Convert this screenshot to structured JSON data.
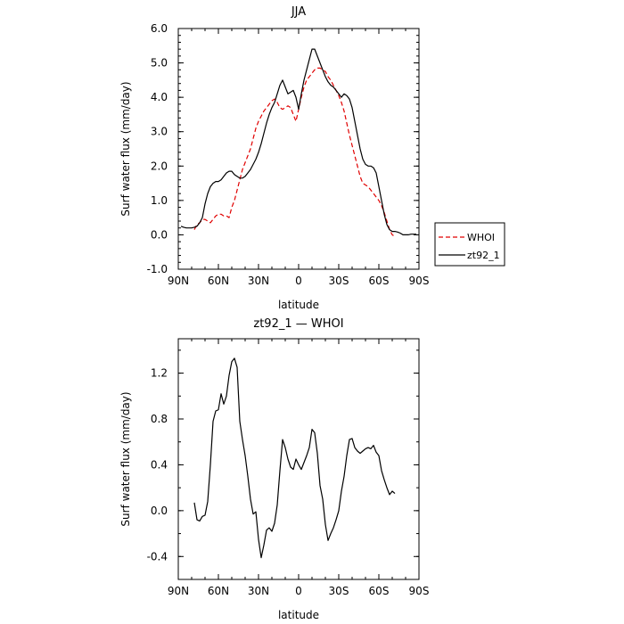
{
  "chart_data": [
    {
      "type": "line",
      "title": "JJA",
      "xlabel": "latitude",
      "ylabel": "Surf water flux (mm/day)",
      "x_tick_labels": [
        "90N",
        "60N",
        "30N",
        "0",
        "30S",
        "60S",
        "90S"
      ],
      "y_tick_labels": [
        "-1.0",
        "0.0",
        "1.0",
        "2.0",
        "3.0",
        "4.0",
        "5.0",
        "6.0"
      ],
      "xlim": [
        90,
        -90
      ],
      "ylim": [
        -1,
        6
      ],
      "y_ticks": [
        -1,
        0,
        1,
        2,
        3,
        4,
        5,
        6
      ],
      "legend": {
        "position": "right",
        "entries": [
          "WHOI",
          "zt92_1"
        ]
      },
      "series": [
        {
          "name": "WHOI",
          "color": "#e00000",
          "dash": "dashed",
          "x": [
            78,
            76,
            74,
            72,
            70,
            68,
            66,
            64,
            62,
            60,
            58,
            56,
            54,
            52,
            50,
            48,
            46,
            44,
            42,
            40,
            38,
            36,
            34,
            32,
            30,
            28,
            26,
            24,
            22,
            20,
            18,
            16,
            14,
            12,
            10,
            8,
            6,
            4,
            2,
            0,
            -2,
            -4,
            -6,
            -8,
            -10,
            -12,
            -14,
            -16,
            -18,
            -20,
            -22,
            -24,
            -26,
            -28,
            -30,
            -32,
            -34,
            -36,
            -38,
            -40,
            -42,
            -44,
            -46,
            -48,
            -50,
            -52,
            -54,
            -56,
            -58,
            -60,
            -62,
            -64,
            -66,
            -68,
            -70,
            -72
          ],
          "y": [
            0.15,
            0.3,
            0.35,
            0.45,
            0.45,
            0.4,
            0.35,
            0.45,
            0.55,
            0.6,
            0.6,
            0.55,
            0.55,
            0.5,
            0.8,
            1.0,
            1.3,
            1.6,
            1.9,
            2.1,
            2.3,
            2.5,
            2.8,
            3.1,
            3.3,
            3.45,
            3.6,
            3.7,
            3.8,
            3.9,
            3.95,
            3.85,
            3.7,
            3.65,
            3.7,
            3.75,
            3.7,
            3.5,
            3.3,
            3.65,
            4.0,
            4.3,
            4.5,
            4.6,
            4.7,
            4.8,
            4.85,
            4.85,
            4.8,
            4.75,
            4.6,
            4.5,
            4.35,
            4.2,
            4.05,
            3.85,
            3.6,
            3.25,
            2.9,
            2.6,
            2.3,
            2.0,
            1.7,
            1.5,
            1.45,
            1.4,
            1.3,
            1.2,
            1.1,
            1.0,
            0.85,
            0.65,
            0.4,
            0.15,
            0.0,
            -0.05
          ]
        },
        {
          "name": "zt92_1",
          "color": "#000000",
          "dash": "solid",
          "x": [
            88,
            86,
            84,
            82,
            80,
            78,
            76,
            74,
            72,
            70,
            68,
            66,
            64,
            62,
            60,
            58,
            56,
            54,
            52,
            50,
            48,
            46,
            44,
            42,
            40,
            38,
            36,
            34,
            32,
            30,
            28,
            26,
            24,
            22,
            20,
            18,
            16,
            14,
            12,
            10,
            8,
            6,
            4,
            2,
            0,
            -2,
            -4,
            -6,
            -8,
            -10,
            -12,
            -14,
            -16,
            -18,
            -20,
            -22,
            -24,
            -26,
            -28,
            -30,
            -32,
            -34,
            -36,
            -38,
            -40,
            -42,
            -44,
            -46,
            -48,
            -50,
            -52,
            -54,
            -56,
            -58,
            -60,
            -62,
            -64,
            -66,
            -68,
            -70,
            -72,
            -74,
            -76,
            -78,
            -80,
            -82,
            -84,
            -86,
            -88
          ],
          "y": [
            0.25,
            0.22,
            0.2,
            0.2,
            0.2,
            0.22,
            0.25,
            0.35,
            0.5,
            0.9,
            1.2,
            1.4,
            1.5,
            1.55,
            1.55,
            1.6,
            1.7,
            1.8,
            1.85,
            1.85,
            1.75,
            1.7,
            1.65,
            1.65,
            1.7,
            1.8,
            1.9,
            2.05,
            2.2,
            2.4,
            2.65,
            2.95,
            3.25,
            3.5,
            3.7,
            3.85,
            4.1,
            4.35,
            4.5,
            4.3,
            4.1,
            4.15,
            4.2,
            4.0,
            3.65,
            4.1,
            4.5,
            4.8,
            5.1,
            5.4,
            5.4,
            5.2,
            5.0,
            4.8,
            4.6,
            4.45,
            4.35,
            4.3,
            4.2,
            4.1,
            4.0,
            4.1,
            4.05,
            3.95,
            3.7,
            3.3,
            2.9,
            2.5,
            2.2,
            2.05,
            2.0,
            2.0,
            1.95,
            1.8,
            1.4,
            1.0,
            0.6,
            0.3,
            0.15,
            0.1,
            0.1,
            0.08,
            0.05,
            0.0,
            0.0,
            0.0,
            0.02,
            0.02,
            0.02
          ]
        }
      ]
    },
    {
      "type": "line",
      "title": "zt92_1  —  WHOI",
      "xlabel": "latitude",
      "ylabel": "Surf water flux (mm/day)",
      "x_tick_labels": [
        "90N",
        "60N",
        "30N",
        "0",
        "30S",
        "60S",
        "90S"
      ],
      "y_tick_labels": [
        "-0.4",
        "0.0",
        "0.4",
        "0.8",
        "1.2"
      ],
      "xlim": [
        90,
        -90
      ],
      "ylim": [
        -0.6,
        1.5
      ],
      "y_ticks": [
        -0.4,
        0.0,
        0.4,
        0.8,
        1.2
      ],
      "series": [
        {
          "name": "",
          "color": "#000000",
          "dash": "solid",
          "x": [
            78,
            76,
            74,
            72,
            70,
            68,
            66,
            64,
            62,
            60,
            58,
            56,
            54,
            52,
            50,
            48,
            46,
            44,
            42,
            40,
            38,
            36,
            34,
            32,
            30,
            28,
            26,
            24,
            22,
            20,
            18,
            16,
            14,
            12,
            10,
            8,
            6,
            4,
            2,
            0,
            -2,
            -4,
            -6,
            -8,
            -10,
            -12,
            -14,
            -16,
            -18,
            -20,
            -22,
            -24,
            -26,
            -28,
            -30,
            -32,
            -34,
            -36,
            -38,
            -40,
            -42,
            -44,
            -46,
            -48,
            -50,
            -52,
            -54,
            -56,
            -58,
            -60,
            -62,
            -64,
            -66,
            -68,
            -70,
            -72
          ],
          "y": [
            0.07,
            -0.08,
            -0.09,
            -0.05,
            -0.04,
            0.08,
            0.4,
            0.78,
            0.87,
            0.88,
            1.02,
            0.93,
            1.0,
            1.18,
            1.3,
            1.33,
            1.25,
            0.78,
            0.62,
            0.48,
            0.3,
            0.1,
            -0.03,
            -0.01,
            -0.25,
            -0.41,
            -0.3,
            -0.17,
            -0.15,
            -0.18,
            -0.11,
            0.05,
            0.35,
            0.62,
            0.55,
            0.45,
            0.38,
            0.36,
            0.45,
            0.4,
            0.36,
            0.42,
            0.48,
            0.55,
            0.71,
            0.68,
            0.5,
            0.22,
            0.1,
            -0.12,
            -0.26,
            -0.2,
            -0.15,
            -0.08,
            0.0,
            0.17,
            0.3,
            0.48,
            0.62,
            0.63,
            0.55,
            0.52,
            0.5,
            0.52,
            0.54,
            0.55,
            0.54,
            0.57,
            0.51,
            0.48,
            0.35,
            0.27,
            0.2,
            0.14,
            0.17,
            0.15
          ]
        }
      ]
    }
  ]
}
